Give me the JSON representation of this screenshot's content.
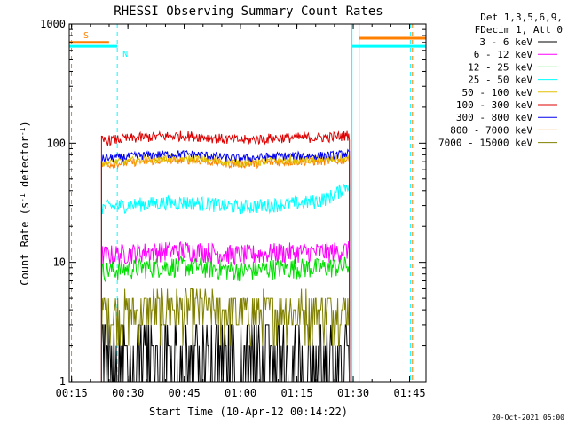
{
  "chart_data": {
    "type": "line",
    "title": "RHESSI Observing Summary Count Rates",
    "xlabel": "Start Time (10-Apr-12 00:14:22)",
    "ylabel_prefix": "Count Rate (s",
    "ylabel_sup1": "-1",
    "ylabel_mid": " detector",
    "ylabel_sup2": "-1",
    "ylabel_suffix": ")",
    "y_scale": "log",
    "ylim": [
      1,
      1000
    ],
    "xlim_minutes": [
      0,
      95
    ],
    "x_ticks": [
      {
        "label": "00:15",
        "minutes": 0.63
      },
      {
        "label": "00:30",
        "minutes": 15.63
      },
      {
        "label": "00:45",
        "minutes": 30.63
      },
      {
        "label": "01:00",
        "minutes": 45.63
      },
      {
        "label": "01:15",
        "minutes": 60.63
      },
      {
        "label": "01:30",
        "minutes": 75.63
      },
      {
        "label": "01:45",
        "minutes": 90.63
      }
    ],
    "y_ticks": [
      {
        "label": "1",
        "value": 1
      },
      {
        "label": "10",
        "value": 10
      },
      {
        "label": "100",
        "value": 100
      },
      {
        "label": "1000",
        "value": 1000
      }
    ],
    "grid": false,
    "legend_header": [
      "Det 1,3,5,6,9,",
      "FDecim 1, Att 0"
    ],
    "legend_position": "right",
    "series": [
      {
        "name": "3 - 6 keV",
        "color": "#000000",
        "level": 1.8,
        "spread": 1.0,
        "noise": 0.22
      },
      {
        "name": "6 - 12 keV",
        "color": "#ff00ff",
        "level": 11.5,
        "spread": 1.0,
        "noise": 0.05
      },
      {
        "name": "12 - 25 keV",
        "color": "#00dd00",
        "level": 8.5,
        "spread": 1.0,
        "noise": 0.05
      },
      {
        "name": "25 - 50 keV",
        "color": "#00ffff",
        "level": 29,
        "spread": 1.15,
        "noise": 0.035
      },
      {
        "name": "50 - 100 keV",
        "color": "#e0c000",
        "level": 68,
        "spread": 1.1,
        "noise": 0.02
      },
      {
        "name": "100 - 300 keV",
        "color": "#dd0000",
        "level": 105,
        "spread": 1.15,
        "noise": 0.025
      },
      {
        "name": "300 - 800 keV",
        "color": "#0000ee",
        "level": 74,
        "spread": 1.1,
        "noise": 0.02
      },
      {
        "name": "800 - 7000 keV",
        "color": "#ff8000",
        "level": 66,
        "spread": 1.08,
        "noise": 0.02
      },
      {
        "name": "7000 - 15000 keV",
        "color": "#808000",
        "level": 3.8,
        "spread": 1.5,
        "noise": 0.1
      }
    ],
    "data_interval_minutes": [
      8.6,
      74.6
    ],
    "segments": [
      {
        "letter": "S",
        "minutes": [
          0,
          10.6
        ],
        "value": 700,
        "color": "#ff8000"
      },
      {
        "letter": "N",
        "minutes": [
          0,
          12.8
        ],
        "value": 650,
        "color": "#00ffff"
      },
      {
        "letter": "",
        "minutes": [
          77.2,
          95
        ],
        "value": 760,
        "color": "#ff8000"
      },
      {
        "letter": "",
        "minutes": [
          75.3,
          95
        ],
        "value": 650,
        "color": "#00ffff"
      }
    ],
    "vertical_lines": [
      {
        "minutes": 0.6,
        "color": "#ff8000",
        "style": "dashed"
      },
      {
        "minutes": 12.8,
        "color": "#00ffff",
        "style": "dashed"
      },
      {
        "minutes": 75.3,
        "color": "#00ffff",
        "style": "solid"
      },
      {
        "minutes": 77.2,
        "color": "#ff8000",
        "style": "solid"
      },
      {
        "minutes": 90.9,
        "color": "#00ffff",
        "style": "dashed"
      },
      {
        "minutes": 91.4,
        "color": "#ff8000",
        "style": "dashed"
      }
    ],
    "footer": "20-Oct-2021 05:00"
  }
}
